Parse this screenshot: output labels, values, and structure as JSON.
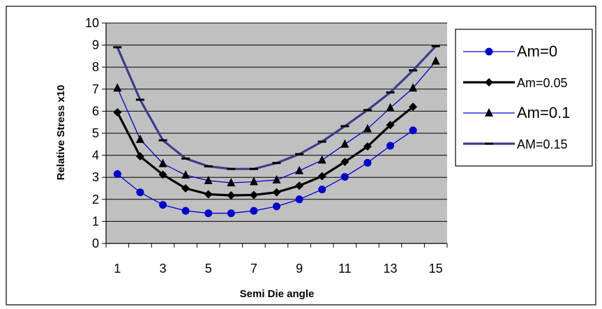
{
  "chart_data": {
    "type": "line",
    "title": "",
    "xlabel": "Semi Die angle",
    "ylabel": "Relative Stress x10",
    "x": [
      1,
      2,
      3,
      4,
      5,
      6,
      7,
      8,
      9,
      10,
      11,
      12,
      13,
      14,
      15
    ],
    "x_tick_labels": [
      "1",
      "3",
      "5",
      "7",
      "9",
      "11",
      "13",
      "15"
    ],
    "y_tick_labels": [
      "0",
      "1",
      "2",
      "3",
      "4",
      "5",
      "6",
      "7",
      "8",
      "9",
      "10"
    ],
    "ylim": [
      0,
      10
    ],
    "grid": true,
    "legend_position": "right",
    "plot_background": "#c0c0c0",
    "series": [
      {
        "name": "Am=0",
        "marker": "circle",
        "color": "#0000cc",
        "line_width": "thin",
        "values": [
          3.15,
          2.32,
          1.75,
          1.48,
          1.37,
          1.37,
          1.48,
          1.68,
          2.0,
          2.45,
          3.02,
          3.66,
          4.43,
          5.13,
          null
        ]
      },
      {
        "name": "Am=0.05",
        "marker": "diamond",
        "color": "#000000",
        "line_width": "thick",
        "values": [
          5.95,
          3.95,
          3.12,
          2.5,
          2.23,
          2.18,
          2.2,
          2.32,
          2.62,
          3.05,
          3.7,
          4.4,
          5.37,
          6.2,
          null
        ]
      },
      {
        "name": "Am=0.1",
        "marker": "triangle",
        "color": "#0000cc",
        "line_width": "thin",
        "values": [
          7.05,
          4.72,
          3.62,
          3.1,
          2.85,
          2.75,
          2.8,
          2.88,
          3.3,
          3.78,
          4.5,
          5.2,
          6.15,
          7.05,
          8.27
        ]
      },
      {
        "name": "AM=0.15",
        "marker": "dash",
        "color": "#3c3c8c",
        "line_width": "thick",
        "values": [
          8.9,
          6.52,
          4.68,
          3.85,
          3.5,
          3.38,
          3.38,
          3.65,
          4.05,
          4.62,
          5.32,
          6.05,
          6.85,
          7.85,
          8.95
        ]
      }
    ]
  }
}
